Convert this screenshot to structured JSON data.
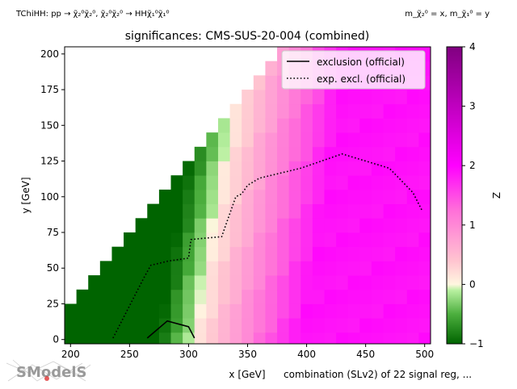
{
  "header": {
    "process": "TChiHH: pp → χ̃₂⁰χ̃₂⁰, χ̃₂⁰χ̃₂⁰ → HHχ̃₁⁰χ̃₁⁰",
    "mass_assignment": "m_χ̃₂⁰ = x, m_χ̃₁⁰ = y"
  },
  "footer": {
    "combination_note": "combination (SLv2) of 22 signal reg, ...",
    "logo_text": "SModelS"
  },
  "colors": {
    "low": "#006400",
    "zero": "#fff6e0",
    "high": "#ff00ff",
    "max": "#800080",
    "exclusion_line": "#000000"
  },
  "chart_data": {
    "type": "heatmap",
    "title": "significances: CMS-SUS-20-004 (combined)",
    "xlabel": "x [GeV]",
    "ylabel": "y [GeV]",
    "xlim": [
      195,
      505
    ],
    "ylim": [
      -3,
      205
    ],
    "xticks": [
      200,
      250,
      300,
      350,
      400,
      450,
      500
    ],
    "yticks": [
      0,
      25,
      50,
      75,
      100,
      125,
      150,
      175,
      200
    ],
    "colorbar": {
      "label": "Z",
      "range": [
        -1,
        4
      ],
      "ticks": [
        -1,
        0,
        1,
        2,
        3,
        4
      ]
    },
    "legend": {
      "placement": "top-right",
      "entries": [
        "exclusion (official)",
        "exp. excl. (official)"
      ]
    },
    "grid": false,
    "series": [
      {
        "name": "exclusion (official)",
        "style": "solid",
        "x": [
          265,
          282,
          300,
          305
        ],
        "y": [
          1,
          13,
          9,
          1
        ]
      },
      {
        "name": "exp. excl. (official)",
        "style": "dotted",
        "x": [
          236,
          262,
          268,
          283,
          300,
          302,
          314,
          328,
          340,
          345,
          350,
          360,
          395,
          430,
          470,
          490,
          498
        ],
        "y": [
          1,
          43,
          52,
          55,
          57,
          70,
          71,
          72,
          100,
          102,
          108,
          113,
          120,
          130,
          120,
          103,
          90
        ]
      }
    ],
    "z_summary": {
      "excluded_region_z": -1,
      "transition_edge_x_at_y0": 305,
      "transition_edge_x_at_y200": 345,
      "high_region_z": 1.9
    }
  }
}
